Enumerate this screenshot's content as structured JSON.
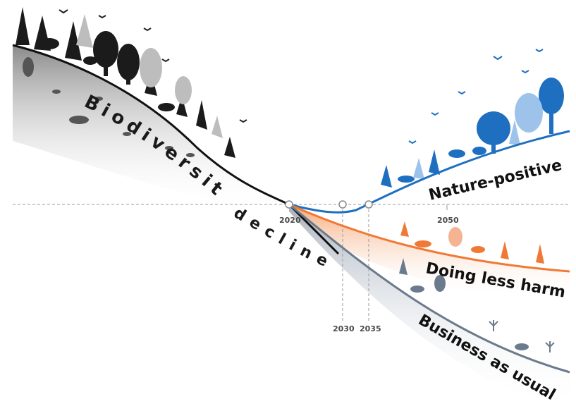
{
  "diagram": {
    "years": {
      "y2020": "2020",
      "y2030": "2030",
      "y2035": "2035",
      "y2050": "2050"
    },
    "decline_label_1": "Biodiversity",
    "decline_label_2": "decline",
    "scenarios": [
      {
        "label": "Nature-positive",
        "color": "#1f6fc0"
      },
      {
        "label": "Doing less harm",
        "color": "#f07a35"
      },
      {
        "label": "Business as usual",
        "color": "#6b7a8c"
      }
    ],
    "colors": {
      "decline": "#111111",
      "baseline": "#9a9a9a"
    }
  }
}
